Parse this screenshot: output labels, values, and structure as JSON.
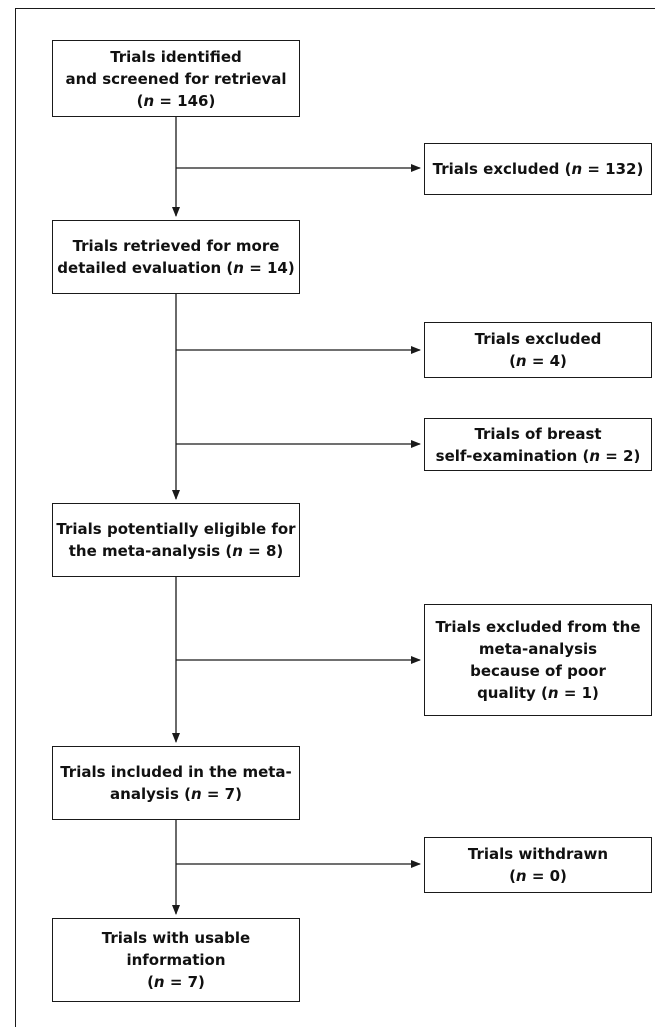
{
  "flowchart": {
    "main_boxes": [
      {
        "id": "identified",
        "lines": [
          [
            {
              "t": "Trials identified"
            }
          ],
          [
            {
              "t": "and screened for retrieval"
            }
          ],
          [
            {
              "t": "("
            },
            {
              "t": "n",
              "i": true
            },
            {
              "t": " = 146)"
            }
          ]
        ]
      },
      {
        "id": "retrieved",
        "lines": [
          [
            {
              "t": "Trials retrieved for more"
            }
          ],
          [
            {
              "t": "detailed evaluation ("
            },
            {
              "t": "n",
              "i": true
            },
            {
              "t": " = 14)"
            }
          ]
        ]
      },
      {
        "id": "eligible",
        "lines": [
          [
            {
              "t": "Trials potentially eligible for"
            }
          ],
          [
            {
              "t": "the meta-analysis ("
            },
            {
              "t": "n",
              "i": true
            },
            {
              "t": " = 8)"
            }
          ]
        ]
      },
      {
        "id": "included",
        "lines": [
          [
            {
              "t": "Trials included in the meta-"
            }
          ],
          [
            {
              "t": "analysis ("
            },
            {
              "t": "n",
              "i": true
            },
            {
              "t": " = 7)"
            }
          ]
        ]
      },
      {
        "id": "usable",
        "lines": [
          [
            {
              "t": "Trials with usable"
            }
          ],
          [
            {
              "t": "information"
            }
          ],
          [
            {
              "t": "("
            },
            {
              "t": "n",
              "i": true
            },
            {
              "t": " = 7)"
            }
          ]
        ]
      }
    ],
    "side_boxes": [
      {
        "id": "excluded-132",
        "lines": [
          [
            {
              "t": "Trials excluded ("
            },
            {
              "t": "n",
              "i": true
            },
            {
              "t": " = 132)"
            }
          ]
        ]
      },
      {
        "id": "excluded-4",
        "lines": [
          [
            {
              "t": "Trials excluded"
            }
          ],
          [
            {
              "t": "("
            },
            {
              "t": "n",
              "i": true
            },
            {
              "t": " = 4)"
            }
          ]
        ]
      },
      {
        "id": "breast-self-exam",
        "lines": [
          [
            {
              "t": "Trials of breast"
            }
          ],
          [
            {
              "t": "self-examination ("
            },
            {
              "t": "n",
              "i": true
            },
            {
              "t": " = 2)"
            }
          ]
        ]
      },
      {
        "id": "poor-quality",
        "lines": [
          [
            {
              "t": "Trials excluded from the"
            }
          ],
          [
            {
              "t": "meta-analysis"
            }
          ],
          [
            {
              "t": "because of poor"
            }
          ],
          [
            {
              "t": "quality ("
            },
            {
              "t": "n",
              "i": true
            },
            {
              "t": " = 1)"
            }
          ]
        ]
      },
      {
        "id": "withdrawn",
        "lines": [
          [
            {
              "t": "Trials withdrawn"
            }
          ],
          [
            {
              "t": "("
            },
            {
              "t": "n",
              "i": true
            },
            {
              "t": " = 0)"
            }
          ]
        ]
      }
    ]
  }
}
